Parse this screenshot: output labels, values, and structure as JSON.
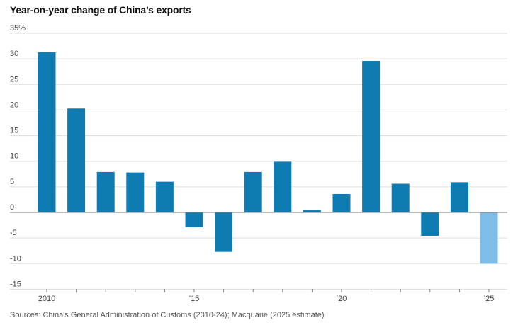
{
  "chart_data": {
    "type": "bar",
    "title": "Year-on-year change of China’s exports",
    "source": "Sources: China's General Administration of Customs (2010-24); Macquarie (2025 estimate)",
    "categories": [
      "2010",
      "2011",
      "2012",
      "2013",
      "2014",
      "2015",
      "2016",
      "2017",
      "2018",
      "2019",
      "2020",
      "2021",
      "2022",
      "2023",
      "2024",
      "2025"
    ],
    "values": [
      31.3,
      20.3,
      7.9,
      7.8,
      6.0,
      -2.9,
      -7.7,
      7.9,
      9.9,
      0.5,
      3.6,
      29.6,
      5.6,
      -4.6,
      5.9,
      -10.0
    ],
    "estimate": [
      false,
      false,
      false,
      false,
      false,
      false,
      false,
      false,
      false,
      false,
      false,
      false,
      false,
      false,
      false,
      true
    ],
    "y_ticks": [
      35,
      30,
      25,
      20,
      15,
      10,
      5,
      0,
      -5,
      -10,
      -15
    ],
    "y_tick_labels": [
      "35%",
      "30",
      "25",
      "20",
      "15",
      "10",
      "5",
      "0",
      "-5",
      "-10",
      "-15"
    ],
    "x_tick_labels": [
      {
        "year": "2010",
        "label": "2010"
      },
      {
        "year": "2015",
        "label": "’15"
      },
      {
        "year": "2020",
        "label": "’20"
      },
      {
        "year": "2025",
        "label": "’25"
      }
    ],
    "ylim": [
      -15,
      35
    ],
    "grid": true,
    "colors": {
      "bar": "#0e7bb3",
      "estimate_bar": "#7dbde8",
      "grid": "#dddddd",
      "zero_line": "#777777"
    }
  }
}
